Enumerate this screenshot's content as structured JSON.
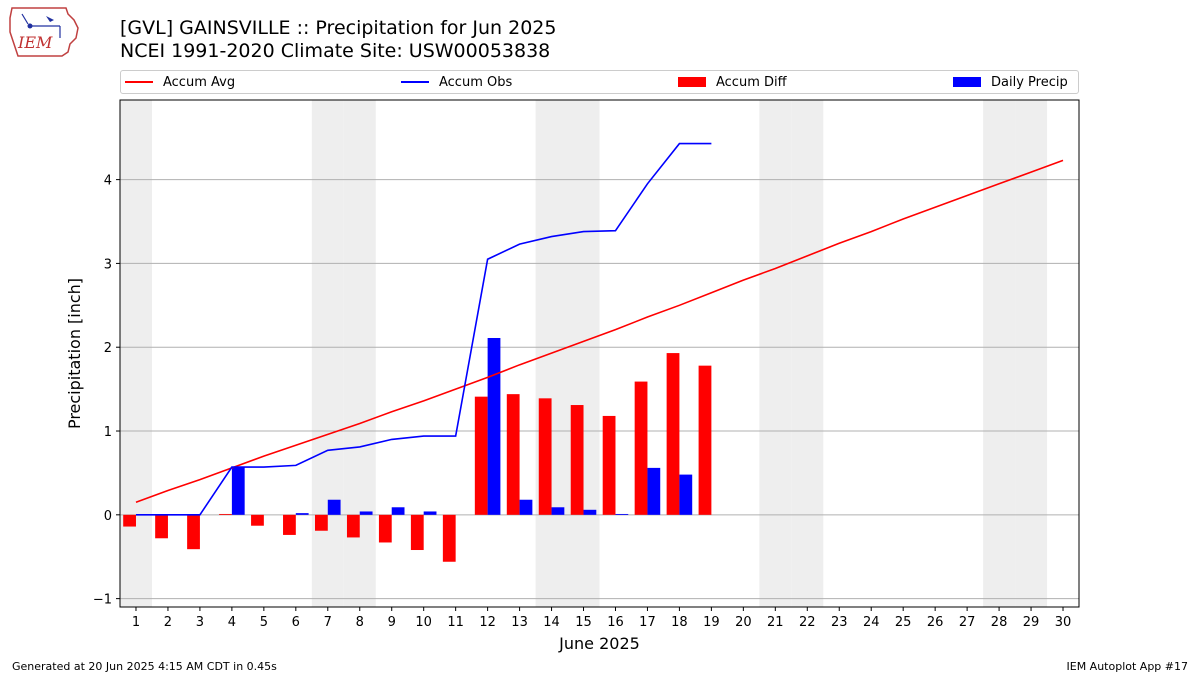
{
  "logo": {
    "text": "IEM"
  },
  "title_line1": "[GVL] GAINSVILLE :: Precipitation for Jun 2025",
  "title_line2": "NCEI 1991-2020 Climate Site: USW00053838",
  "legend": [
    {
      "label": "Accum Avg",
      "color": "#ff0000",
      "kind": "line"
    },
    {
      "label": "Accum Obs",
      "color": "#0000ff",
      "kind": "line"
    },
    {
      "label": "Accum Diff",
      "color": "#ff0000",
      "kind": "box"
    },
    {
      "label": "Daily Precip",
      "color": "#0000ff",
      "kind": "box"
    }
  ],
  "footer_left": "Generated at 20 Jun 2025 4:15 AM CDT in 0.45s",
  "footer_right": "IEM Autoplot App #17",
  "chart_data": {
    "type": "bar",
    "xlabel": "June 2025",
    "ylabel": "Precipitation [inch]",
    "x": [
      1,
      2,
      3,
      4,
      5,
      6,
      7,
      8,
      9,
      10,
      11,
      12,
      13,
      14,
      15,
      16,
      17,
      18,
      19,
      20,
      21,
      22,
      23,
      24,
      25,
      26,
      27,
      28,
      29,
      30
    ],
    "xlim": [
      0.5,
      30.5
    ],
    "ylim": [
      -1.1,
      4.95
    ],
    "yticks": [
      -1,
      0,
      1,
      2,
      3,
      4
    ],
    "grid": "horizontal",
    "legend_position": "top",
    "weekend_shading": [
      1,
      7,
      8,
      14,
      15,
      21,
      22,
      28,
      29
    ],
    "series": [
      {
        "name": "Accum Avg",
        "type": "line",
        "color": "#ff0000",
        "x": [
          1,
          2,
          3,
          4,
          5,
          6,
          7,
          8,
          9,
          10,
          11,
          12,
          13,
          14,
          15,
          16,
          17,
          18,
          19,
          20,
          21,
          22,
          23,
          24,
          25,
          26,
          27,
          28,
          29,
          30
        ],
        "values": [
          0.15,
          0.29,
          0.42,
          0.56,
          0.7,
          0.83,
          0.96,
          1.09,
          1.23,
          1.36,
          1.5,
          1.64,
          1.79,
          1.93,
          2.07,
          2.21,
          2.36,
          2.5,
          2.65,
          2.8,
          2.94,
          3.09,
          3.24,
          3.38,
          3.53,
          3.67,
          3.81,
          3.95,
          4.09,
          4.23
        ]
      },
      {
        "name": "Accum Obs",
        "type": "line",
        "color": "#0000ff",
        "x": [
          1,
          2,
          3,
          4,
          5,
          6,
          7,
          8,
          9,
          10,
          11,
          12,
          13,
          14,
          15,
          16,
          17,
          18,
          19
        ],
        "values": [
          0.0,
          0.0,
          0.0,
          0.57,
          0.57,
          0.59,
          0.77,
          0.81,
          0.9,
          0.94,
          0.94,
          3.05,
          3.23,
          3.32,
          3.38,
          3.39,
          3.95,
          4.43,
          4.43
        ]
      },
      {
        "name": "Accum Diff",
        "type": "bar",
        "color": "#ff0000",
        "x": [
          1,
          2,
          3,
          4,
          5,
          6,
          7,
          8,
          9,
          10,
          11,
          12,
          13,
          14,
          15,
          16,
          17,
          18,
          19
        ],
        "values": [
          -0.14,
          -0.28,
          -0.41,
          0.01,
          -0.13,
          -0.24,
          -0.19,
          -0.27,
          -0.33,
          -0.42,
          -0.56,
          1.41,
          1.44,
          1.39,
          1.31,
          1.18,
          1.59,
          1.93,
          1.78
        ]
      },
      {
        "name": "Daily Precip",
        "type": "bar",
        "color": "#0000ff",
        "x": [
          1,
          2,
          3,
          4,
          5,
          6,
          7,
          8,
          9,
          10,
          11,
          12,
          13,
          14,
          15,
          16,
          17,
          18,
          19
        ],
        "values": [
          0.0,
          0.0,
          0.0,
          0.57,
          0.0,
          0.02,
          0.18,
          0.04,
          0.09,
          0.04,
          0.0,
          2.11,
          0.18,
          0.09,
          0.06,
          0.01,
          0.56,
          0.48,
          0.0
        ]
      }
    ]
  }
}
